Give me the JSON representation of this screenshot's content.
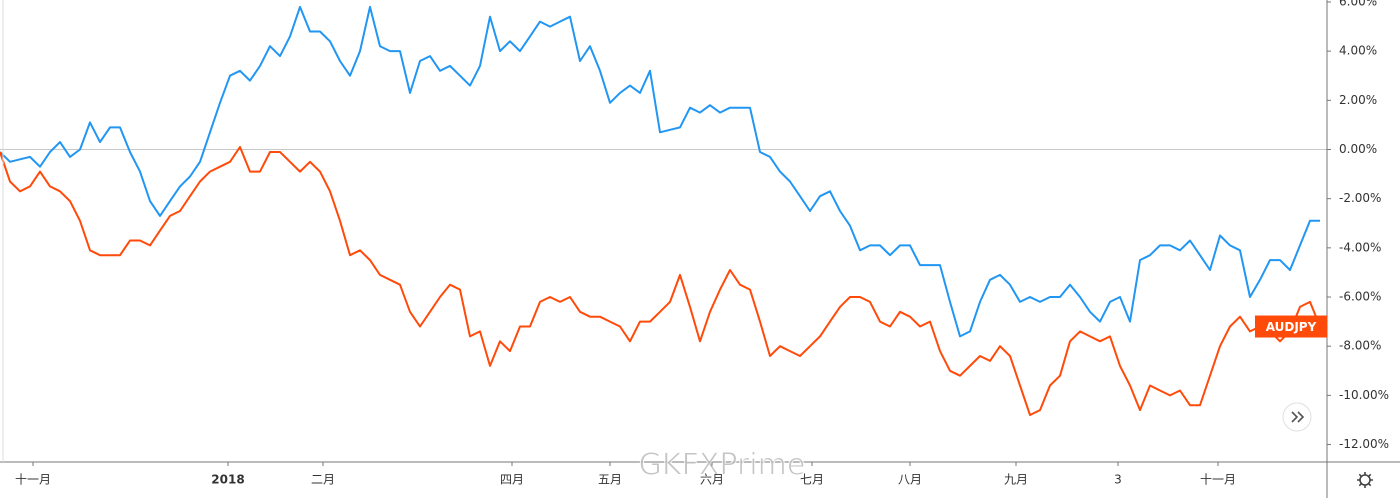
{
  "chart_data": {
    "type": "line",
    "x": [
      0,
      1,
      2,
      3,
      4,
      5,
      6,
      7,
      8,
      9,
      10,
      11,
      12,
      13,
      14,
      15,
      16,
      17,
      18,
      19,
      20,
      21,
      22,
      23,
      24,
      25,
      26,
      27,
      28,
      29,
      30,
      31,
      32,
      33,
      34,
      35,
      36,
      37,
      38,
      39,
      40,
      41,
      42,
      43,
      44,
      45,
      46,
      47,
      48,
      49,
      50,
      51,
      52,
      53,
      54,
      55,
      56,
      57,
      58,
      59,
      60,
      61,
      62,
      63,
      64,
      65,
      66,
      67,
      68,
      69,
      70,
      71,
      72,
      73,
      74,
      75,
      76,
      77,
      78,
      79,
      80,
      81,
      82,
      83,
      84,
      85,
      86,
      87,
      88,
      89,
      90,
      91,
      92,
      93,
      94,
      95,
      96,
      97,
      98,
      99,
      100,
      101,
      102,
      103,
      104,
      105,
      106,
      107,
      108,
      109,
      110,
      111,
      112,
      113,
      114,
      115,
      116,
      117,
      118,
      119,
      120,
      121,
      122,
      123,
      124,
      125,
      126,
      127,
      128,
      129,
      130,
      131,
      132
    ],
    "series": [
      {
        "color": "#2196f3",
        "values": [
          -0.1,
          -0.5,
          -0.4,
          -0.3,
          -0.7,
          -0.1,
          0.3,
          -0.3,
          0,
          1.1,
          0.3,
          0.9,
          0.9,
          -0.1,
          -0.9,
          -2.1,
          -2.7,
          -2.1,
          -1.5,
          -1.1,
          -0.5,
          0.7,
          1.9,
          3.0,
          3.2,
          2.8,
          3.4,
          4.2,
          3.8,
          4.6,
          5.8,
          4.8,
          4.8,
          4.4,
          3.6,
          3.0,
          4.0,
          5.8,
          4.2,
          4.0,
          4.0,
          2.3,
          3.6,
          3.8,
          3.2,
          3.4,
          3.0,
          2.6,
          3.4,
          5.4,
          4.0,
          4.4,
          4.0,
          4.6,
          5.2,
          5.0,
          5.2,
          5.4,
          3.6,
          4.2,
          3.2,
          1.9,
          2.3,
          2.6,
          2.3,
          3.2,
          0.7,
          0.8,
          0.9,
          1.7,
          1.5,
          1.8,
          1.5,
          1.7,
          1.7,
          1.7,
          -0.1,
          -0.3,
          -0.9,
          -1.3,
          -1.9,
          -2.5,
          -1.9,
          -1.7,
          -2.5,
          -3.1,
          -4.1,
          -3.9,
          -3.9,
          -4.3,
          -3.9,
          -3.9,
          -4.7,
          -4.7,
          -4.7,
          -6.2,
          -7.6,
          -7.4,
          -6.2,
          -5.3,
          -5.1,
          -5.5,
          -6.2,
          -6.0,
          -6.2,
          -6.0,
          -6.0,
          -5.5,
          -6.0,
          -6.6,
          -7.0,
          -6.2,
          -6.0,
          -7.0,
          -4.5,
          -4.3,
          -3.9,
          -3.9,
          -4.1,
          -3.7,
          -4.3,
          -4.9,
          -3.5,
          -3.9,
          -4.1,
          -6.0,
          -5.3,
          -4.5,
          -4.5,
          -4.9,
          -3.9,
          -2.9,
          -2.9
        ]
      },
      {
        "name": "AUDJPY",
        "color": "#ff4a0a",
        "values": [
          -0.1,
          -1.3,
          -1.7,
          -1.5,
          -0.9,
          -1.5,
          -1.7,
          -2.1,
          -2.9,
          -4.1,
          -4.3,
          -4.3,
          -4.3,
          -3.7,
          -3.7,
          -3.9,
          -3.3,
          -2.7,
          -2.5,
          -1.9,
          -1.3,
          -0.9,
          -0.7,
          -0.5,
          0.1,
          -0.9,
          -0.9,
          -0.1,
          -0.1,
          -0.5,
          -0.9,
          -0.5,
          -0.9,
          -1.7,
          -2.9,
          -4.3,
          -4.1,
          -4.5,
          -5.1,
          -5.3,
          -5.5,
          -6.6,
          -7.2,
          -6.6,
          -6.0,
          -5.5,
          -5.7,
          -7.6,
          -7.4,
          -8.8,
          -7.8,
          -8.2,
          -7.2,
          -7.2,
          -6.2,
          -6.0,
          -6.2,
          -6.0,
          -6.6,
          -6.8,
          -6.8,
          -7.0,
          -7.2,
          -7.8,
          -7.0,
          -7.0,
          -6.6,
          -6.2,
          -5.1,
          -6.4,
          -7.8,
          -6.6,
          -5.7,
          -4.9,
          -5.5,
          -5.7,
          -7.0,
          -8.4,
          -8.0,
          -8.2,
          -8.4,
          -8.0,
          -7.6,
          -7.0,
          -6.4,
          -6.0,
          -6.0,
          -6.2,
          -7.0,
          -7.2,
          -6.6,
          -6.8,
          -7.2,
          -7.0,
          -8.2,
          -9.0,
          -9.2,
          -8.8,
          -8.4,
          -8.6,
          -8.0,
          -8.4,
          -9.6,
          -10.8,
          -10.6,
          -9.6,
          -9.2,
          -7.8,
          -7.4,
          -7.6,
          -7.8,
          -7.6,
          -8.8,
          -9.6,
          -10.6,
          -9.6,
          -9.8,
          -10.0,
          -9.8,
          -10.4,
          -10.4,
          -9.2,
          -8.0,
          -7.2,
          -6.8,
          -7.4,
          -7.2,
          -7.4,
          -7.8,
          -7.4,
          -6.4,
          -6.2,
          -7.2
        ]
      }
    ],
    "xlim": [
      0,
      132.7
    ],
    "xticks": [
      {
        "value": 3.3,
        "label": "十一月"
      },
      {
        "value": 22.8,
        "label": "2018"
      },
      {
        "value": 32.3,
        "label": "二月"
      },
      {
        "value": 51.2,
        "label": "四月"
      },
      {
        "value": 61,
        "label": "五月"
      },
      {
        "value": 71.2,
        "label": "六月"
      },
      {
        "value": 81.2,
        "label": "七月"
      },
      {
        "value": 91,
        "label": "八月"
      },
      {
        "value": 101.6,
        "label": "九月"
      },
      {
        "value": 111.8,
        "label": "3"
      },
      {
        "value": 121.8,
        "label": "十一月"
      }
    ],
    "ylim": [
      -12.71,
      6.08
    ],
    "yticks": [
      {
        "value": 6,
        "label": "6.00%"
      },
      {
        "value": 4,
        "label": "4.00%"
      },
      {
        "value": 2,
        "label": "2.00%"
      },
      {
        "value": 0,
        "label": "0.00%"
      },
      {
        "value": -2,
        "label": "-2.00%"
      },
      {
        "value": -4,
        "label": "-4.00%"
      },
      {
        "value": -6,
        "label": "-6.00%"
      },
      {
        "value": -8,
        "label": "-8.00%"
      },
      {
        "value": -10,
        "label": "-10.00%"
      },
      {
        "value": -12,
        "label": "-12.00%"
      }
    ],
    "grid": false,
    "watermark": "GKFXPrime"
  }
}
